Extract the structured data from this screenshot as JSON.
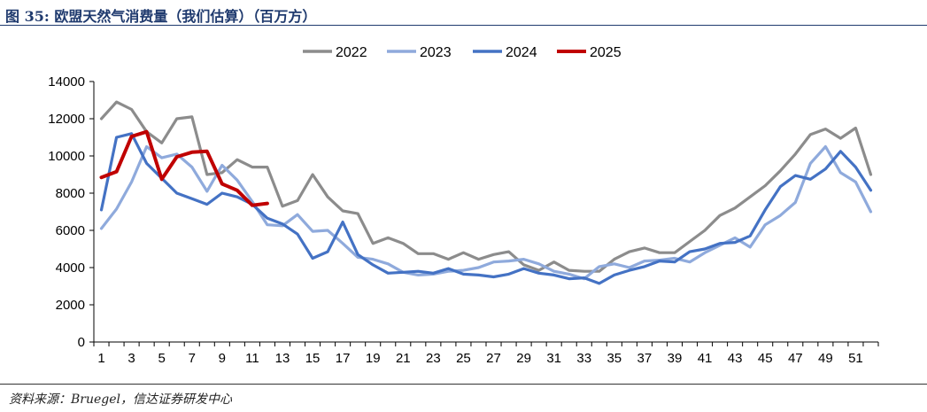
{
  "header": {
    "title": "图 35:  欧盟天然气消费量（我们估算）（百万方）"
  },
  "footer": {
    "source": "资料来源：Bruegel，信达证券研发中心"
  },
  "chart_data": {
    "type": "line",
    "title": "欧盟天然气消费量（我们估算）（百万方）",
    "xlabel": "",
    "ylabel": "",
    "xlim": [
      1,
      52
    ],
    "ylim": [
      0,
      14000
    ],
    "yticks": [
      0,
      2000,
      4000,
      6000,
      8000,
      10000,
      12000,
      14000
    ],
    "xticks": [
      1,
      3,
      5,
      7,
      9,
      11,
      13,
      15,
      17,
      19,
      21,
      23,
      25,
      27,
      29,
      31,
      33,
      35,
      37,
      39,
      41,
      43,
      45,
      47,
      49,
      51
    ],
    "legend_position": "top-center",
    "series": [
      {
        "name": "2022",
        "color": "#8c8c8c",
        "values": [
          12000,
          12900,
          12500,
          11300,
          10700,
          12000,
          12100,
          9000,
          9100,
          9800,
          9400,
          9400,
          7300,
          7600,
          9000,
          7800,
          7050,
          6900,
          5300,
          5600,
          5300,
          4750,
          4750,
          4450,
          4800,
          4450,
          4700,
          4850,
          4150,
          3850,
          4300,
          3850,
          3800,
          3800,
          4450,
          4850,
          5050,
          4800,
          4800,
          5400,
          6000,
          6800,
          7200,
          7800,
          8400,
          9200,
          10100,
          11150,
          11450,
          10950,
          11500,
          9000
        ]
      },
      {
        "name": "2023",
        "color": "#8faadc",
        "values": [
          6100,
          7150,
          8600,
          10500,
          9900,
          10100,
          9400,
          8100,
          9500,
          8700,
          7550,
          6300,
          6250,
          6850,
          5950,
          6000,
          5300,
          4550,
          4450,
          4200,
          3750,
          3600,
          3650,
          3800,
          3850,
          4000,
          4300,
          4350,
          4450,
          4200,
          3800,
          3650,
          3400,
          4050,
          4200,
          4000,
          4350,
          4400,
          4500,
          4300,
          4800,
          5200,
          5600,
          5100,
          6300,
          6800,
          7500,
          9600,
          10500,
          9100,
          8600,
          7000
        ]
      },
      {
        "name": "2024",
        "color": "#4472c4",
        "values": [
          7100,
          11000,
          11200,
          9600,
          8800,
          8000,
          7700,
          7400,
          8000,
          7800,
          7400,
          6650,
          6350,
          5800,
          4500,
          4850,
          6450,
          4700,
          4150,
          3700,
          3750,
          3800,
          3700,
          3950,
          3650,
          3600,
          3500,
          3650,
          3950,
          3700,
          3600,
          3400,
          3450,
          3150,
          3600,
          3850,
          4050,
          4350,
          4300,
          4850,
          5000,
          5300,
          5350,
          5700,
          7100,
          8350,
          8950,
          8750,
          9300,
          10250,
          9400,
          8150
        ]
      },
      {
        "name": "2025",
        "color": "#c00000",
        "values": [
          8850,
          9150,
          11050,
          11300,
          8750,
          9950,
          10200,
          10250,
          8500,
          8150,
          7350,
          7450
        ]
      }
    ]
  }
}
